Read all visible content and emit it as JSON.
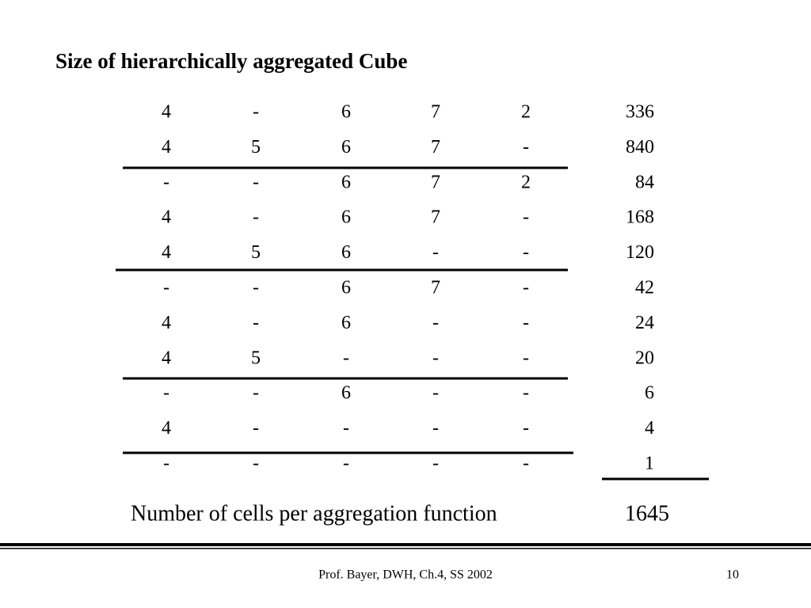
{
  "header": {
    "title": "Size of hierarchically aggregated Cube"
  },
  "table": {
    "rows": [
      [
        "4",
        "-",
        "6",
        "7",
        "2",
        "336"
      ],
      [
        "4",
        "5",
        "6",
        "7",
        "-",
        "840"
      ],
      [
        "-",
        "-",
        "6",
        "7",
        "2",
        "84"
      ],
      [
        "4",
        "-",
        "6",
        "7",
        "-",
        "168"
      ],
      [
        "4",
        "5",
        "6",
        "-",
        "-",
        "120"
      ],
      [
        "-",
        "-",
        "6",
        "7",
        "-",
        "42"
      ],
      [
        "4",
        "-",
        "6",
        "-",
        "-",
        "24"
      ],
      [
        "4",
        "5",
        "-",
        "-",
        "-",
        "20"
      ],
      [
        "-",
        "-",
        "6",
        "-",
        "-",
        "6"
      ],
      [
        "4",
        "-",
        "-",
        "-",
        "-",
        "4"
      ],
      [
        "-",
        "-",
        "-",
        "-",
        "-",
        "1"
      ]
    ]
  },
  "total": {
    "label": "Number of cells per aggregation function",
    "value": "1645"
  },
  "footer": {
    "text": "Prof. Bayer, DWH, Ch.4, SS 2002",
    "page": "10"
  }
}
